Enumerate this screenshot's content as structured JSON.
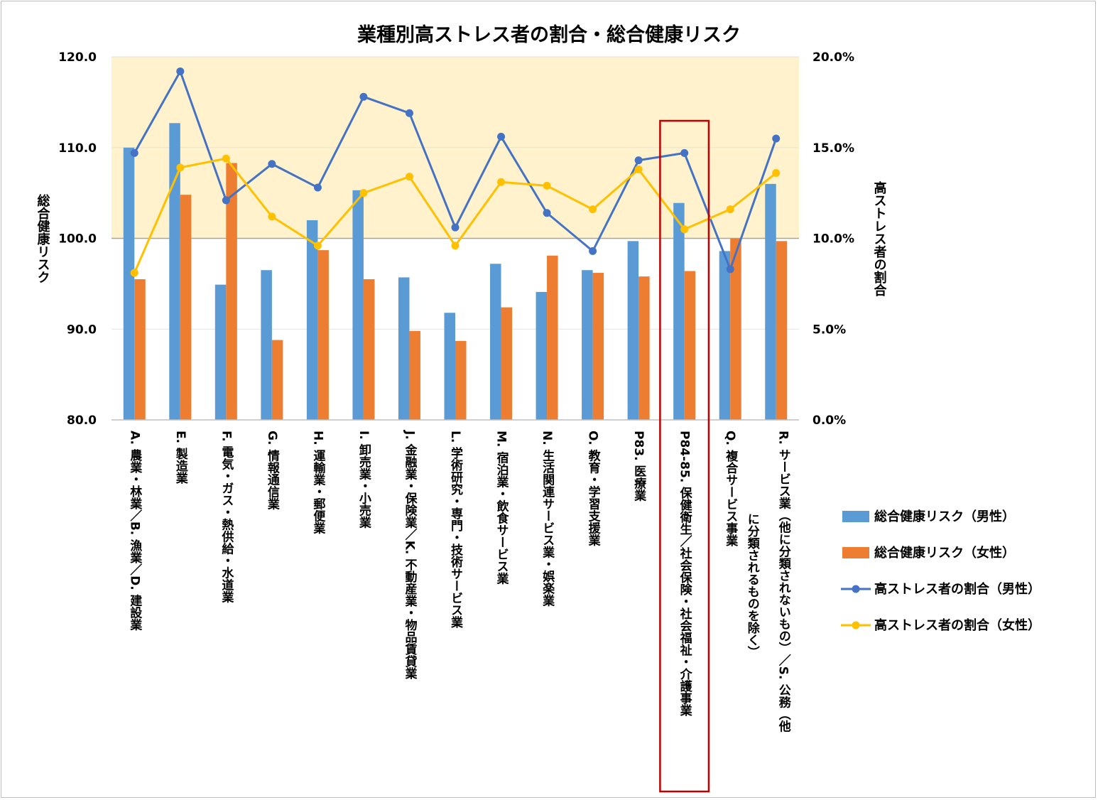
{
  "chart_data": {
    "type": "bar+line",
    "title": "業種別高ストレス者の割合・総合健康リスク",
    "y_left": {
      "label": "総合健康リスク",
      "range": [
        80,
        120
      ],
      "ticks": [
        "80.0",
        "90.0",
        "100.0",
        "110.0",
        "120.0"
      ]
    },
    "y_right": {
      "label": "高ストレス者の割合",
      "range": [
        0,
        20
      ],
      "ticks": [
        "0.0%",
        "5.0%",
        "10.0%",
        "15.0%",
        "20.0%"
      ]
    },
    "shaded_band": {
      "from": 100,
      "to": 120,
      "color": "#fff2cc"
    },
    "reference_line": 100,
    "categories": [
      {
        "lines": [
          "A. 農業・林業／B. 漁業／D. 建設業"
        ]
      },
      {
        "lines": [
          "E. 製造業"
        ]
      },
      {
        "lines": [
          "F. 電気・ガス・熱供給・水道業"
        ]
      },
      {
        "lines": [
          "G. 情報通信業"
        ]
      },
      {
        "lines": [
          "H. 運輸業・郵便業"
        ]
      },
      {
        "lines": [
          "I. 卸売業・小売業"
        ]
      },
      {
        "lines": [
          "J. 金融業・保険業／K. 不動産業・物品賃貸業"
        ]
      },
      {
        "lines": [
          "L. 学術研究・専門・技術サービス業"
        ]
      },
      {
        "lines": [
          "M. 宿泊業・飲食サービス業"
        ]
      },
      {
        "lines": [
          "N. 生活関連サービス業・娯楽業"
        ]
      },
      {
        "lines": [
          "O. 教育・学習支援業"
        ]
      },
      {
        "lines": [
          "P83. 医療業"
        ]
      },
      {
        "lines": [
          "P84-85. 保健衛生／社会保険・社会福祉・介護事業"
        ]
      },
      {
        "lines": [
          "Q. 複合サービス事業"
        ]
      },
      {
        "lines": [
          "R. サービス業（他に分類されないもの）／S. 公務（他",
          "に分類されるものを除く）"
        ]
      }
    ],
    "highlight_index": 12,
    "series": [
      {
        "name": "総合健康リスク（男性）",
        "kind": "bar",
        "axis": "left",
        "color": "#5b9bd5",
        "values": [
          110.0,
          112.7,
          94.9,
          96.5,
          102.0,
          105.3,
          95.7,
          91.8,
          97.2,
          94.1,
          96.5,
          99.7,
          103.9,
          98.6,
          106.0
        ]
      },
      {
        "name": "総合健康リスク（女性）",
        "kind": "bar",
        "axis": "left",
        "color": "#ed7d31",
        "values": [
          95.5,
          104.8,
          108.3,
          88.8,
          98.7,
          95.5,
          89.8,
          88.7,
          92.4,
          98.1,
          96.2,
          95.8,
          96.4,
          100.0,
          99.7
        ]
      },
      {
        "name": "高ストレス者の割合（男性）",
        "kind": "line",
        "axis": "right",
        "color": "#4472c4",
        "values": [
          14.7,
          19.2,
          12.1,
          14.1,
          12.8,
          17.8,
          16.9,
          10.6,
          15.6,
          11.4,
          9.3,
          14.3,
          14.7,
          8.3,
          15.5
        ]
      },
      {
        "name": "高ストレス者の割合（女性）",
        "kind": "line",
        "axis": "right",
        "color": "#ffc000",
        "values": [
          8.1,
          13.9,
          14.4,
          11.2,
          9.6,
          12.5,
          13.4,
          9.6,
          13.1,
          12.9,
          11.6,
          13.8,
          10.5,
          11.6,
          13.6
        ]
      }
    ]
  }
}
